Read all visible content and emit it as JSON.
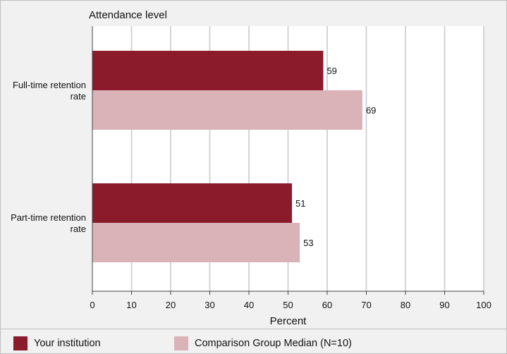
{
  "chart_data": {
    "type": "bar",
    "orientation": "horizontal",
    "group_axis_title": "Attendance level",
    "categories": [
      "Full-time retention rate",
      "Part-time retention rate"
    ],
    "category_lines": [
      [
        "Full-time retention",
        "rate"
      ],
      [
        "Part-time retention",
        "rate"
      ]
    ],
    "series": [
      {
        "name": "Your institution",
        "color": "#8b1a2b",
        "values": [
          59,
          51
        ]
      },
      {
        "name": "Comparison Group Median (N=10)",
        "color": "#d9b3b8",
        "values": [
          69,
          53
        ]
      }
    ],
    "xlabel": "Percent",
    "xlim": [
      0,
      100
    ],
    "xticks": [
      0,
      10,
      20,
      30,
      40,
      50,
      60,
      70,
      80,
      90,
      100
    ],
    "grid": true,
    "legend_position": "bottom"
  }
}
